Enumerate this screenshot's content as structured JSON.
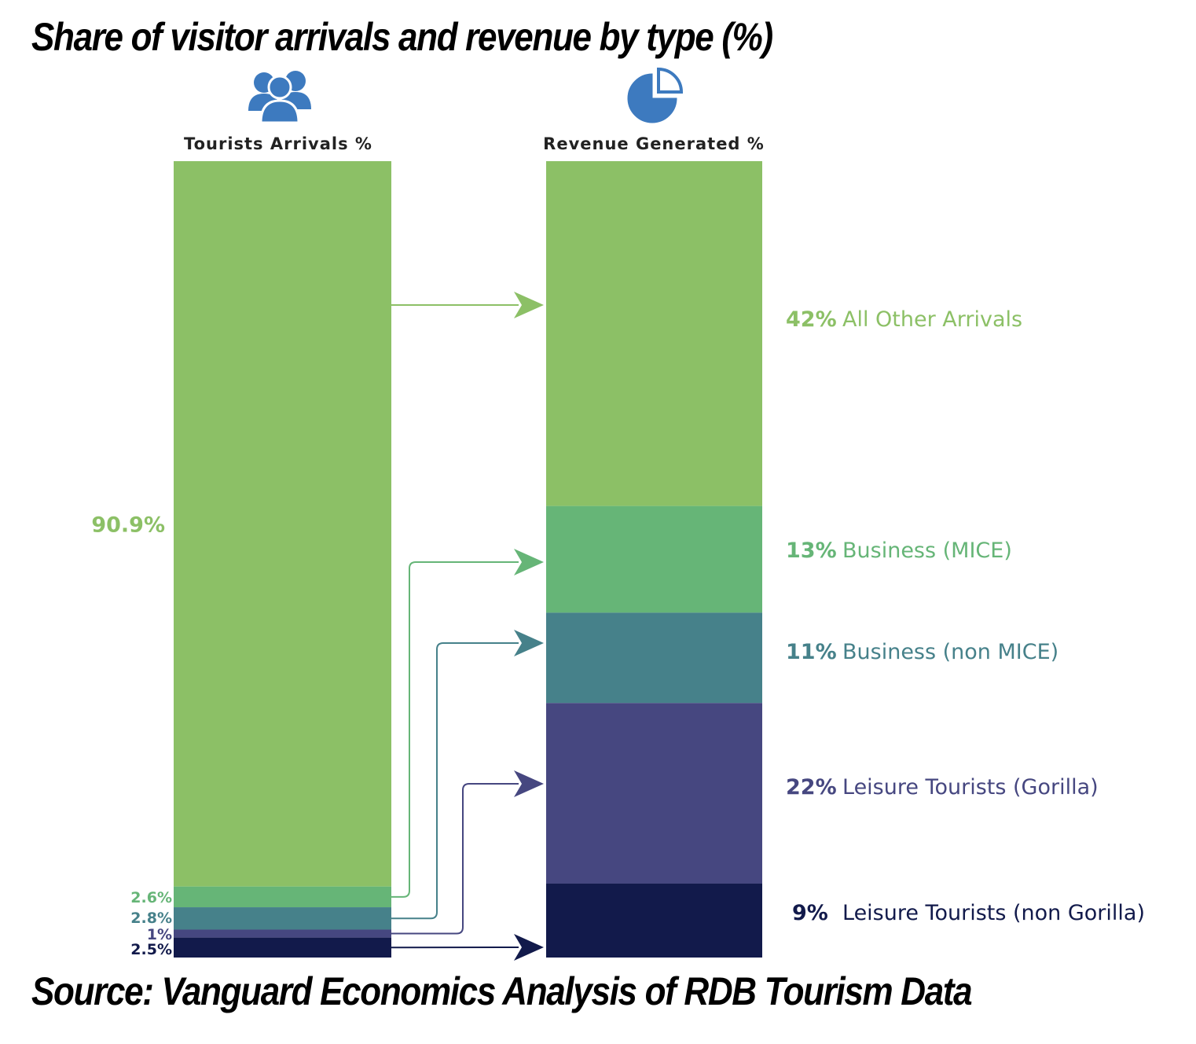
{
  "title": "Share of visitor arrivals and revenue by type (%)",
  "source": "Source: Vanguard Economics Analysis of RDB Tourism Data",
  "icons": {
    "left": "people-group-icon",
    "right": "pie-chart-icon",
    "icon_color": "#3d7abf"
  },
  "chart_data": {
    "type": "bar",
    "subtype": "stacked-100-percent-comparison",
    "columns": [
      {
        "label": "Tourists Arrivals %"
      },
      {
        "label": "Revenue Generated %"
      }
    ],
    "categories": [
      "All Other Arrivals",
      "Business (MICE)",
      "Business (non MICE)",
      "Leisure Tourists (Gorilla)",
      "Leisure Tourists (non Gorilla)"
    ],
    "arrivals": [
      90.9,
      2.6,
      2.8,
      1,
      2.5
    ],
    "arrivals_labels": [
      "90.9%",
      "2.6%",
      "2.8%",
      "1%",
      "2.5%"
    ],
    "revenue": [
      42,
      13,
      11,
      22,
      9
    ],
    "revenue_labels": [
      "42%",
      "13%",
      "11%",
      "22%",
      "9%"
    ],
    "colors": [
      "#8cc066",
      "#66b577",
      "#46818a",
      "#464780",
      "#121a4b"
    ],
    "label_colors": [
      "#8cc066",
      "#66b577",
      "#46818a",
      "#464780",
      "#121a4b"
    ],
    "unit": "%"
  }
}
